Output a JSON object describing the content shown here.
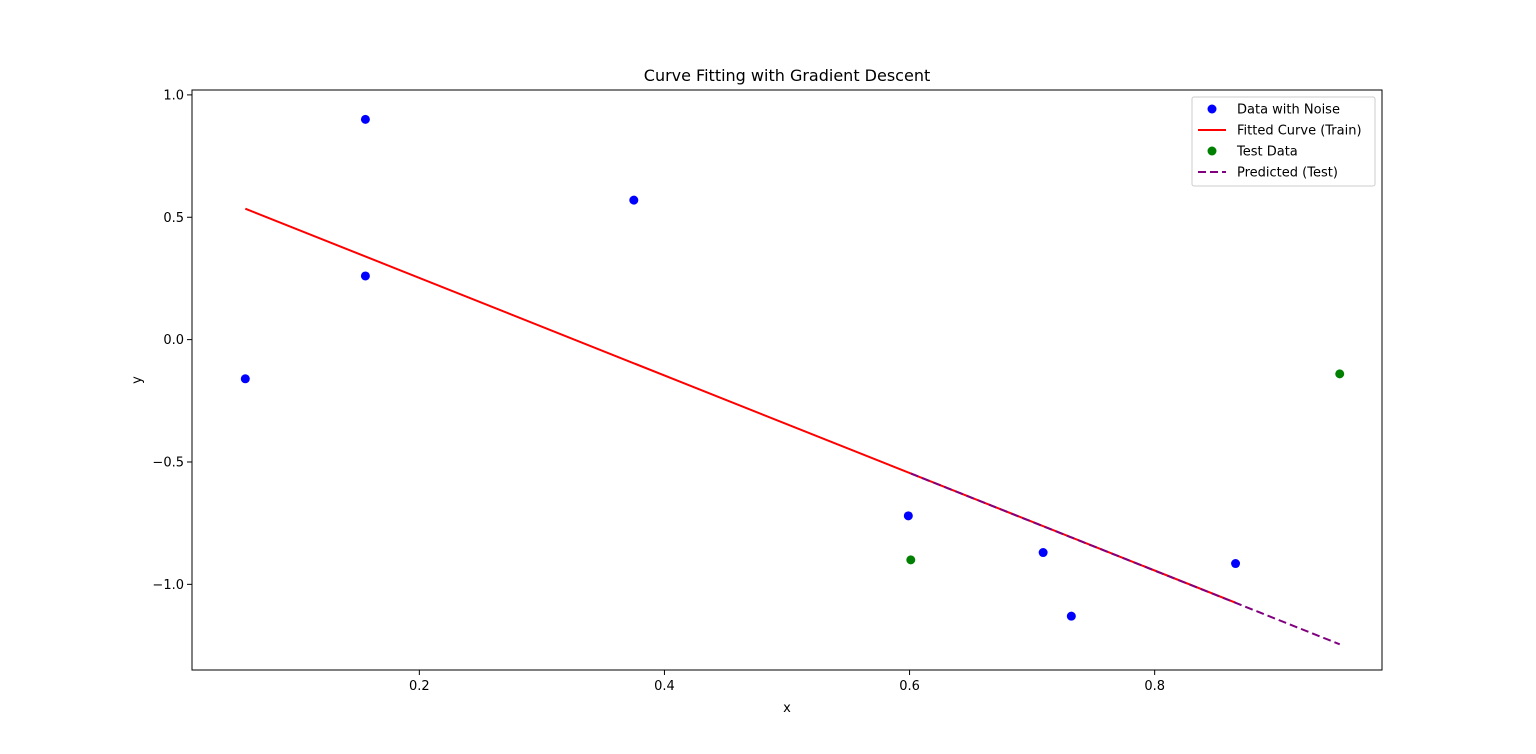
{
  "chart_data": {
    "type": "scatter",
    "title": "Curve Fitting with Gradient Descent",
    "xlabel": "x",
    "ylabel": "y",
    "xlim": [
      0.0145,
      0.9855
    ],
    "ylim": [
      -1.35,
      1.02
    ],
    "xticks": [
      0.2,
      0.4,
      0.6,
      0.8
    ],
    "xtick_labels": [
      "0.2",
      "0.4",
      "0.6",
      "0.8"
    ],
    "yticks": [
      -1.0,
      -0.5,
      0.0,
      0.5,
      1.0
    ],
    "ytick_labels": [
      "−1.0",
      "−0.5",
      "0.0",
      "0.5",
      "1.0"
    ],
    "grid": false,
    "legend_position": "top-right",
    "series": [
      {
        "name": "Data with Noise",
        "kind": "scatter",
        "color": "#0000ff",
        "points": [
          [
            0.058,
            -0.16
          ],
          [
            0.156,
            0.9
          ],
          [
            0.156,
            0.26
          ],
          [
            0.375,
            0.57
          ],
          [
            0.599,
            -0.72
          ],
          [
            0.709,
            -0.87
          ],
          [
            0.732,
            -1.13
          ],
          [
            0.866,
            -0.915
          ]
        ]
      },
      {
        "name": "Fitted Curve (Train)",
        "kind": "line",
        "color": "#ff0000",
        "dash": "solid",
        "points": [
          [
            0.058,
            0.535
          ],
          [
            0.866,
            -1.075
          ]
        ]
      },
      {
        "name": "Test Data",
        "kind": "scatter",
        "color": "#008000",
        "points": [
          [
            0.601,
            -0.9
          ],
          [
            0.951,
            -0.14
          ]
        ]
      },
      {
        "name": "Predicted (Test)",
        "kind": "line",
        "color": "#800080",
        "dash": "dashed",
        "points": [
          [
            0.601,
            -0.547
          ],
          [
            0.951,
            -1.245
          ]
        ]
      }
    ]
  }
}
